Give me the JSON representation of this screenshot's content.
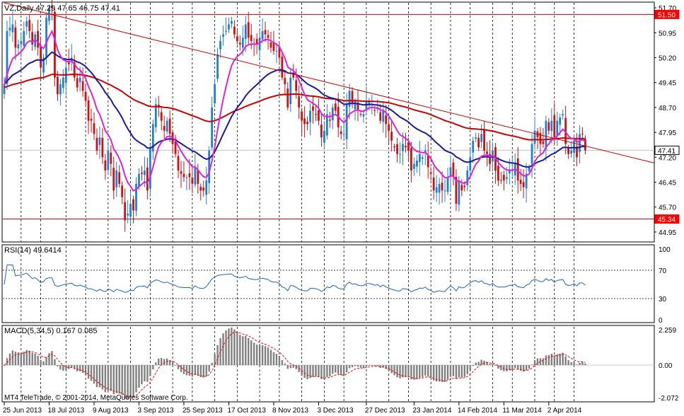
{
  "chart_data": [
    {
      "type": "candlestick",
      "symbol_label": "VZ,Daily",
      "ohlc_label": "47.29 47.65 46.75 47.41",
      "ylim": [
        44.65,
        51.85
      ],
      "y_ticks": [
        "51.70",
        "50.95",
        "50.20",
        "49.45",
        "48.70",
        "47.95",
        "47.20",
        "46.45",
        "45.70",
        "44.95"
      ],
      "price_markers": [
        {
          "label": "51.50",
          "value": 51.5,
          "color": "#ff0000"
        },
        {
          "label": "47.41",
          "value": 47.41,
          "color": "#000000"
        },
        {
          "label": "45.34",
          "value": 45.34,
          "color": "#ff0000"
        }
      ],
      "horizontal_lines": [
        {
          "value": 51.5,
          "color": "#cc0000"
        },
        {
          "value": 45.34,
          "color": "#cc0000"
        },
        {
          "value": 47.41,
          "color": "#c0c0c0"
        }
      ],
      "trendline": {
        "color": "#cc0000",
        "start": [
          "2013-06-25",
          52.85
        ],
        "end": [
          "2014-04-23",
          47.62
        ]
      },
      "x_dates": [
        "2013-06-25",
        "2013-06-26",
        "2013-06-27",
        "2013-06-28",
        "2013-07-01",
        "2013-07-02",
        "2013-07-03",
        "2013-07-05",
        "2013-07-08",
        "2013-07-09",
        "2013-07-10",
        "2013-07-11",
        "2013-07-12",
        "2013-07-15",
        "2013-07-16",
        "2013-07-17",
        "2013-07-18",
        "2013-07-19",
        "2013-07-22",
        "2013-07-23",
        "2013-07-24",
        "2013-07-25",
        "2013-07-26",
        "2013-07-29",
        "2013-07-30",
        "2013-07-31",
        "2013-08-01",
        "2013-08-02",
        "2013-08-05",
        "2013-08-06",
        "2013-08-07",
        "2013-08-08",
        "2013-08-09",
        "2013-08-12",
        "2013-08-13",
        "2013-08-14",
        "2013-08-15",
        "2013-08-16",
        "2013-08-19",
        "2013-08-20",
        "2013-08-21",
        "2013-08-22",
        "2013-08-23",
        "2013-08-26",
        "2013-08-27",
        "2013-08-28",
        "2013-08-29",
        "2013-08-30",
        "2013-09-03",
        "2013-09-04",
        "2013-09-05",
        "2013-09-06",
        "2013-09-09",
        "2013-09-10",
        "2013-09-11",
        "2013-09-12",
        "2013-09-13",
        "2013-09-16",
        "2013-09-17",
        "2013-09-18",
        "2013-09-19",
        "2013-09-20",
        "2013-09-23",
        "2013-09-24",
        "2013-09-25",
        "2013-09-26",
        "2013-09-27",
        "2013-09-30",
        "2013-10-01",
        "2013-10-02",
        "2013-10-03",
        "2013-10-04",
        "2013-10-07",
        "2013-10-08",
        "2013-10-09",
        "2013-10-10",
        "2013-10-11",
        "2013-10-14",
        "2013-10-15",
        "2013-10-16",
        "2013-10-17",
        "2013-10-18",
        "2013-10-21",
        "2013-10-22",
        "2013-10-23",
        "2013-10-24",
        "2013-10-25",
        "2013-10-28",
        "2013-10-29",
        "2013-10-30",
        "2013-10-31",
        "2013-11-01",
        "2013-11-04",
        "2013-11-05",
        "2013-11-06",
        "2013-11-07",
        "2013-11-08",
        "2013-11-11",
        "2013-11-12",
        "2013-11-13",
        "2013-11-14",
        "2013-11-15",
        "2013-11-18",
        "2013-11-19",
        "2013-11-20",
        "2013-11-21",
        "2013-11-22",
        "2013-11-25",
        "2013-11-26",
        "2013-11-27",
        "2013-11-29",
        "2013-12-02",
        "2013-12-03",
        "2013-12-04",
        "2013-12-05",
        "2013-12-06",
        "2013-12-09",
        "2013-12-10",
        "2013-12-11",
        "2013-12-12",
        "2013-12-13",
        "2013-12-16",
        "2013-12-17",
        "2013-12-18",
        "2013-12-19",
        "2013-12-20",
        "2013-12-23",
        "2013-12-24",
        "2013-12-26",
        "2013-12-27",
        "2013-12-30",
        "2013-12-31",
        "2014-01-02",
        "2014-01-03",
        "2014-01-06",
        "2014-01-07",
        "2014-01-08",
        "2014-01-09",
        "2014-01-10",
        "2014-01-13",
        "2014-01-14",
        "2014-01-15",
        "2014-01-16",
        "2014-01-17",
        "2014-01-21",
        "2014-01-22",
        "2014-01-23",
        "2014-01-24",
        "2014-01-27",
        "2014-01-28",
        "2014-01-29",
        "2014-01-30",
        "2014-01-31",
        "2014-02-03",
        "2014-02-04",
        "2014-02-05",
        "2014-02-06",
        "2014-02-07",
        "2014-02-10",
        "2014-02-11",
        "2014-02-12",
        "2014-02-13",
        "2014-02-14",
        "2014-02-18",
        "2014-02-19",
        "2014-02-20",
        "2014-02-21",
        "2014-02-24",
        "2014-02-25",
        "2014-02-26",
        "2014-02-27",
        "2014-02-28",
        "2014-03-03",
        "2014-03-04",
        "2014-03-05",
        "2014-03-06",
        "2014-03-07",
        "2014-03-10",
        "2014-03-11",
        "2014-03-12",
        "2014-03-13",
        "2014-03-14",
        "2014-03-17",
        "2014-03-18",
        "2014-03-19",
        "2014-03-20",
        "2014-03-21",
        "2014-03-24",
        "2014-03-25",
        "2014-03-26",
        "2014-03-27",
        "2014-03-28",
        "2014-03-31",
        "2014-04-01",
        "2014-04-02",
        "2014-04-03",
        "2014-04-04",
        "2014-04-07",
        "2014-04-08",
        "2014-04-09",
        "2014-04-10",
        "2014-04-11",
        "2014-04-14",
        "2014-04-15",
        "2014-04-16",
        "2014-04-17",
        "2014-04-21",
        "2014-04-22",
        "2014-04-23"
      ],
      "x_ticks": [
        {
          "label": "25 Jun 2013",
          "date": "2013-06-25"
        },
        {
          "label": "18 Jul 2013",
          "date": "2013-07-18"
        },
        {
          "label": "9 Aug 2013",
          "date": "2013-08-09"
        },
        {
          "label": "3 Sep 2013",
          "date": "2013-09-03"
        },
        {
          "label": "25 Sep 2013",
          "date": "2013-09-25"
        },
        {
          "label": "17 Oct 2013",
          "date": "2013-10-17"
        },
        {
          "label": "8 Nov 2013",
          "date": "2013-11-08"
        },
        {
          "label": "3 Dec 2013",
          "date": "2013-12-03"
        },
        {
          "label": "27 Dec 2013",
          "date": "2013-12-27"
        },
        {
          "label": "23 Jan 2014",
          "date": "2014-01-23"
        },
        {
          "label": "14 Feb 2014",
          "date": "2014-02-14"
        },
        {
          "label": "11 Mar 2014",
          "date": "2014-03-11"
        },
        {
          "label": "2 Apr 2014",
          "date": "2014-04-02"
        }
      ],
      "vertical_grid_dates": [
        "2013-07-03",
        "2013-07-15",
        "2013-07-26",
        "2013-08-06",
        "2013-08-16",
        "2013-08-28",
        "2013-09-09",
        "2013-09-19",
        "2013-09-30",
        "2013-10-10",
        "2013-10-22",
        "2013-11-01",
        "2013-11-12",
        "2013-11-22",
        "2013-12-05",
        "2013-12-16",
        "2013-12-27",
        "2014-01-09",
        "2014-01-21",
        "2014-01-31",
        "2014-02-11",
        "2014-02-21",
        "2014-03-05",
        "2014-03-14",
        "2014-03-26",
        "2014-04-04",
        "2014-04-15"
      ],
      "closes": [
        49.4,
        51,
        51.1,
        51.2,
        50.5,
        50.6,
        50.7,
        51,
        51.3,
        51,
        50.6,
        50.9,
        50.5,
        49.9,
        50.2,
        51.4,
        51.7,
        51.7,
        49.6,
        49.1,
        49.4,
        49.6,
        49.9,
        50,
        50.2,
        49.6,
        49.3,
        49.6,
        49.2,
        48.9,
        48.3,
        48.3,
        47.9,
        47.4,
        47.8,
        47.2,
        46.8,
        47.4,
        47,
        46.2,
        46.8,
        46.4,
        46,
        45.3,
        45.5,
        45.8,
        45.6,
        46.4,
        46.7,
        46.7,
        46.8,
        46.2,
        47.5,
        48.2,
        48.8,
        48.7,
        48.3,
        48,
        48.3,
        47.9,
        47.6,
        47.3,
        46.8,
        46.7,
        46.6,
        46.6,
        46.6,
        46.4,
        46.9,
        46.4,
        46.2,
        46.2,
        46.5,
        47.4,
        48.7,
        49.4,
        50.3,
        50.7,
        50.9,
        51,
        51.2,
        51.3,
        50.9,
        50.7,
        50.6,
        50.8,
        51.2,
        50.8,
        50.7,
        50.6,
        50.6,
        50.8,
        51,
        50.9,
        50.8,
        50.5,
        50.4,
        50.4,
        50.2,
        49.6,
        49.4,
        48.7,
        49.6,
        49.6,
        49.2,
        48.7,
        48.3,
        48.2,
        48.2,
        48.6,
        48.6,
        48.5,
        48.3,
        47.8,
        48,
        48.5,
        48.3,
        48.7,
        48.6,
        48.1,
        47.9,
        47.9,
        48.8,
        49.2,
        48.8,
        48.9,
        48.6,
        48.5,
        48.5,
        48.9,
        48.9,
        48.8,
        48.6,
        48.7,
        48.3,
        48.6,
        48.2,
        48,
        47.7,
        47.5,
        47.3,
        47.3,
        47.6,
        47.5,
        47.4,
        46.8,
        47,
        47.1,
        47.3,
        47.2,
        47.4,
        46.9,
        46.7,
        46.2,
        46.3,
        46.4,
        46.2,
        46.2,
        46.6,
        46.9,
        46.6,
        45.8,
        46.5,
        46.2,
        46.3,
        46.8,
        47.2,
        47.7,
        47.8,
        47.5,
        47.9,
        47.4,
        47.3,
        47,
        47.4,
        46.8,
        46.5,
        46.5,
        46.5,
        46.6,
        46.8,
        46.8,
        47,
        46.5,
        46.4,
        46.3,
        46.7,
        46.9,
        47.6,
        48,
        47.8,
        47.6,
        47.6,
        48.3,
        48,
        48.3,
        47.8,
        48.3,
        48.4,
        48.5,
        47.6,
        47.3,
        47.4,
        47.7,
        47.2,
        47.9,
        47.9,
        47.41
      ]
    },
    {
      "type": "line",
      "label": "RSI(14) 49.6414",
      "ylim": [
        0,
        100
      ],
      "y_ticks": [
        "100",
        "70",
        "30",
        "0"
      ],
      "levels": [
        70,
        30
      ],
      "color": "#1e64c8"
    },
    {
      "type": "bar",
      "label": "MACD(5,34,5) 0.167 0.085",
      "y_ticks": [
        "2.259",
        "0.00",
        "-2.072"
      ],
      "ylim": [
        -2.072,
        2.259
      ],
      "histogram_color": "#808080",
      "signal_color": "#ff0000"
    }
  ],
  "overlays": {
    "ema_fast_color": "#dd22dd",
    "ema_mid_color": "#1a1aa0",
    "ema_slow_color": "#cc0000"
  },
  "copyright": "MT4 TeleTrade, © 2001-2014, MetaQuotes Software Corp.",
  "colors": {
    "bull": "#2080d0",
    "bear": "#cc1111",
    "grid": "#000000"
  }
}
